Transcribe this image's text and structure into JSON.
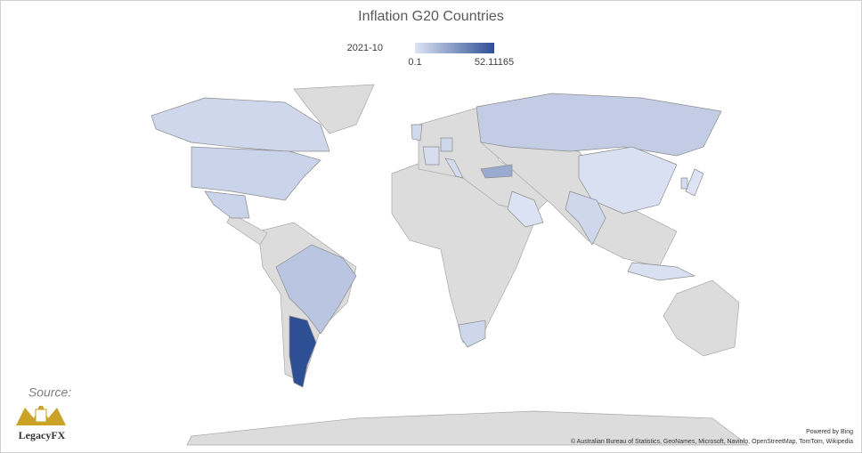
{
  "chart_data": {
    "type": "choropleth",
    "title": "Inflation G20 Countries",
    "legend_title": "2021-10",
    "clim": [
      0.1,
      52.11165
    ],
    "colors": [
      "#dde4f4",
      "#2f4f95"
    ],
    "values": [
      4.7,
      6.2,
      6.2,
      10.67,
      52.11165,
      8.1,
      1.5,
      4.48,
      19.89,
      0.8,
      5.0,
      4.5,
      2.6,
      4.2,
      3.0,
      1.66,
      0.1,
      3.2
    ]
  },
  "source_label": "Source:",
  "logo_text": "LegacyFX",
  "credits": {
    "powered": "Powered by Bing",
    "attribution": "© Australian Bureau of Statistics, GeoNames, Microsoft, Navinfo, OpenStreetMap, TomTom, Wikipedia"
  }
}
